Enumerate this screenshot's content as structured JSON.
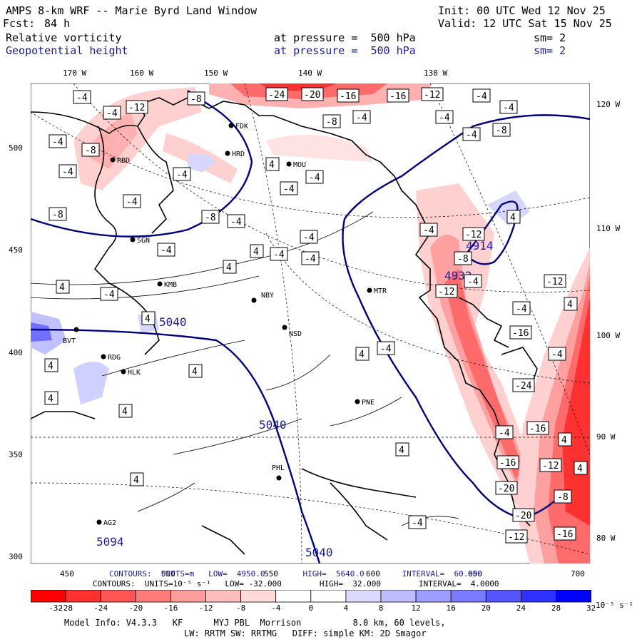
{
  "header": {
    "title": "AMPS 8-km WRF -- Marie Byrd Land Window",
    "init": "Init: 00 UTC Wed 12 Nov 25",
    "fcst_label": "Fcst:",
    "fcst_value": "84 h",
    "valid": "Valid: 12 UTC Sat 15 Nov 25",
    "field1_name": "Relative vorticity",
    "field1_level": "at pressure =  500 hPa",
    "field1_sm": "sm= 2",
    "field2_name": "Geopotential height",
    "field2_level": "at pressure =  500 hPa",
    "field2_sm": "sm= 2"
  },
  "map": {
    "top_lon_labels": [
      "170 W",
      "160 W",
      "150 W",
      "140 W",
      "130 W"
    ],
    "right_lon_labels": [
      "120 W",
      "110 W",
      "100 W",
      "90 W",
      "80 W"
    ],
    "left_y_labels": [
      "500",
      "450",
      "400",
      "350",
      "300"
    ],
    "bottom_x_labels": [
      "450",
      "500",
      "550",
      "600",
      "650",
      "700"
    ],
    "stations": [
      "FDK",
      "HRD",
      "MOU",
      "RBD",
      "SGN",
      "KMB",
      "NBY",
      "NSD",
      "MTR",
      "BVT",
      "RDG",
      "HLK",
      "PNE",
      "PHL",
      "AG2"
    ],
    "height_labels": [
      "5040",
      "5040",
      "5040",
      "5094",
      "4914",
      "4932"
    ],
    "vort_labels": [
      "-4",
      "-8",
      "-12",
      "-16",
      "-20",
      "-24",
      "4"
    ],
    "colors": {
      "negative_strong": "#ff0000",
      "negative_weak": "#ffd6d6",
      "positive_strong": "#0000ff",
      "positive_weak": "#d6d6ff",
      "height_contour": "#000080",
      "coast": "#000000"
    }
  },
  "contour_info": {
    "line1": "CONTOURS:  UNITS=m   LOW=  4950.0        HIGH=  5640.0        INTERVAL=  60.000",
    "line2": "CONTOURS:  UNITS=10⁻⁵ s⁻¹   LOW= -32.000        HIGH=  32.000        INTERVAL=  4.0000"
  },
  "colorbar": {
    "ticks": [
      "-32",
      "-28",
      "-24",
      "-20",
      "-16",
      "-12",
      "-8",
      "-4",
      "0",
      "4",
      "8",
      "12",
      "16",
      "20",
      "24",
      "28",
      "32"
    ],
    "unit": "10⁻⁵ s⁻¹",
    "colors": [
      "#ff0000",
      "#ff3030",
      "#ff5555",
      "#ff7b7b",
      "#ff9d9d",
      "#ffbdbd",
      "#ffdada",
      "#ffffff",
      "#ffffff",
      "#dadaff",
      "#bdbdff",
      "#9d9dff",
      "#7b7bff",
      "#5555ff",
      "#3030ff",
      "#0000ff"
    ]
  },
  "footer": {
    "line1": "Model Info: V4.3.3   KF      MYJ PBL  Morrison          8.0 km, 60 levels,",
    "line2": "LW: RRTM SW: RRTMG   DIFF: simple KM: 2D Smagor"
  }
}
